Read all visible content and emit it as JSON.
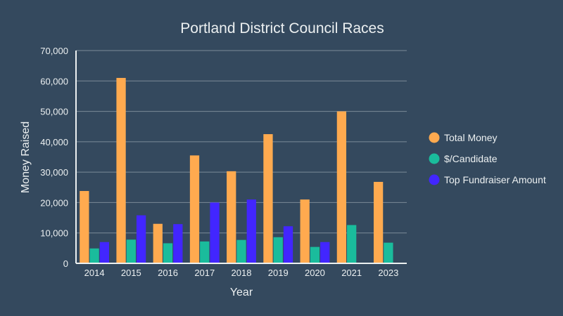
{
  "chart_data": {
    "type": "bar",
    "title": "Portland District Council Races",
    "xlabel": "Year",
    "ylabel": "Money Raised",
    "ylim": [
      0,
      70000
    ],
    "yticks": [
      "0",
      "10,000",
      "20,000",
      "30,000",
      "40,000",
      "50,000",
      "60,000",
      "70,000"
    ],
    "categories": [
      "2014",
      "2015",
      "2016",
      "2017",
      "2018",
      "2019",
      "2020",
      "2021",
      "2023"
    ],
    "grid": true,
    "legend_position": "right",
    "series": [
      {
        "name": "Total Money",
        "color": "#ffaa4f",
        "values": [
          23800,
          61000,
          13000,
          35500,
          30300,
          42500,
          21000,
          50000,
          26800
        ]
      },
      {
        "name": "$/Candidate",
        "color": "#1abc9c",
        "values": [
          4900,
          7800,
          6600,
          7200,
          7700,
          8600,
          5400,
          12600,
          6800
        ]
      },
      {
        "name": "Top Fundraiser Amount",
        "color": "#4226ff",
        "values": [
          7000,
          15800,
          12900,
          20000,
          21000,
          12200,
          7000,
          null,
          null
        ]
      }
    ]
  }
}
